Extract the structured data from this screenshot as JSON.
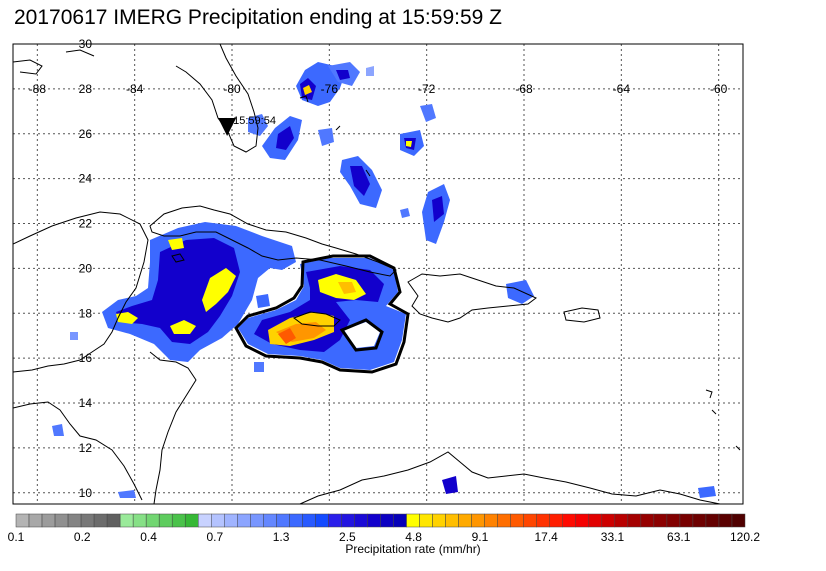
{
  "title": "20170617 IMERG Precipitation ending at 15:59:59 Z",
  "time_marker": {
    "label": "15:59:54",
    "lon": -80.2,
    "lat": 25.9
  },
  "map": {
    "lon_range": [
      -89,
      -59
    ],
    "lat_range": [
      9.5,
      30
    ],
    "lon_ticks": [
      -88,
      -84,
      -80,
      -76,
      -72,
      -68,
      -64,
      -60
    ],
    "lat_ticks": [
      10,
      12,
      14,
      16,
      18,
      20,
      22,
      24,
      26,
      28,
      30
    ],
    "grid": true,
    "coastline_color": "#000000"
  },
  "colorbar": {
    "label": "Precipitation rate (mm/hr)",
    "tick_labels": [
      "0.1",
      "0.2",
      "0.4",
      "0.7",
      "1.3",
      "2.5",
      "4.8",
      "9.1",
      "17.4",
      "33.1",
      "63.1",
      "120.2"
    ],
    "colors": [
      "#b4b4b4",
      "#a8a8a8",
      "#9c9c9c",
      "#909090",
      "#848484",
      "#787878",
      "#6c6c6c",
      "#606060",
      "#9aea9a",
      "#86e086",
      "#72d672",
      "#5ecc5e",
      "#4ac24a",
      "#36b836",
      "#c8d2ff",
      "#b4c3ff",
      "#a0b4ff",
      "#8ca5ff",
      "#7896ff",
      "#6487ff",
      "#5078ff",
      "#3c69ff",
      "#285aff",
      "#144bff",
      "#2a1eea",
      "#2214e0",
      "#1a0ad6",
      "#1200cc",
      "#0c00c2",
      "#0600b8",
      "#ffff00",
      "#ffe600",
      "#ffd200",
      "#ffbe00",
      "#ffaa00",
      "#ff9600",
      "#ff8200",
      "#ff6e00",
      "#ff5a00",
      "#ff4600",
      "#ff3200",
      "#ff1e00",
      "#ff0a00",
      "#f50000",
      "#e10000",
      "#cd0000",
      "#b90000",
      "#a50000",
      "#960000",
      "#8c0000",
      "#820000",
      "#780000",
      "#6e0000",
      "#640000",
      "#5a0000",
      "#500000"
    ]
  }
}
